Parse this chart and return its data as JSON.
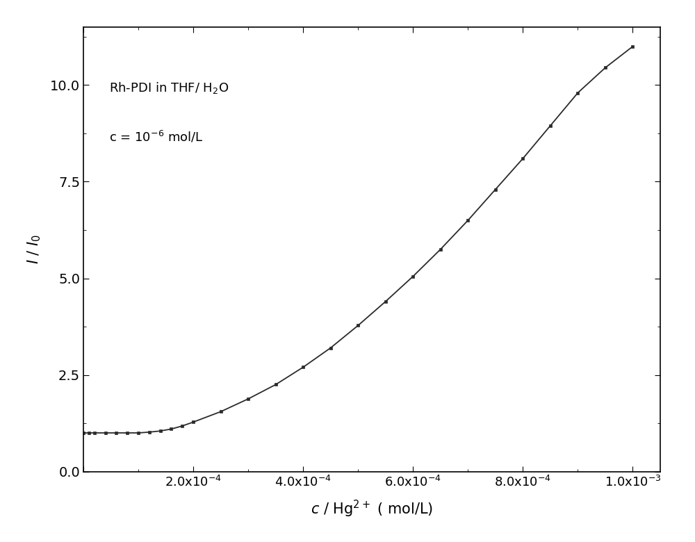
{
  "annotation_line1": "Rh-PDI in THF/ H$_2$O",
  "annotation_line2": "c = 10$^{-6}$ mol/L",
  "ylabel": "I / I$_0$",
  "xlim": [
    0.0,
    0.00105
  ],
  "ylim": [
    0.0,
    11.5
  ],
  "yticks": [
    0.0,
    2.5,
    5.0,
    7.5,
    10.0
  ],
  "line_color": "#2a2a2a",
  "marker_color": "#2a2a2a",
  "background_color": "#ffffff",
  "x_data": [
    0.0,
    1e-05,
    2e-05,
    4e-05,
    6e-05,
    8e-05,
    0.0001,
    0.00012,
    0.00014,
    0.00016,
    0.00018,
    0.0002,
    0.00025,
    0.0003,
    0.00035,
    0.0004,
    0.00045,
    0.0005,
    0.00055,
    0.0006,
    0.00065,
    0.0007,
    0.00075,
    0.0008,
    0.00085,
    0.0009,
    0.00095,
    0.001
  ],
  "y_data": [
    1.0,
    1.0,
    1.0,
    1.0,
    1.0,
    1.0,
    1.0,
    1.02,
    1.05,
    1.1,
    1.18,
    1.28,
    1.55,
    1.88,
    2.25,
    2.7,
    3.2,
    3.78,
    4.4,
    5.05,
    5.75,
    6.5,
    7.3,
    8.1,
    8.95,
    9.8,
    10.45,
    11.0
  ]
}
